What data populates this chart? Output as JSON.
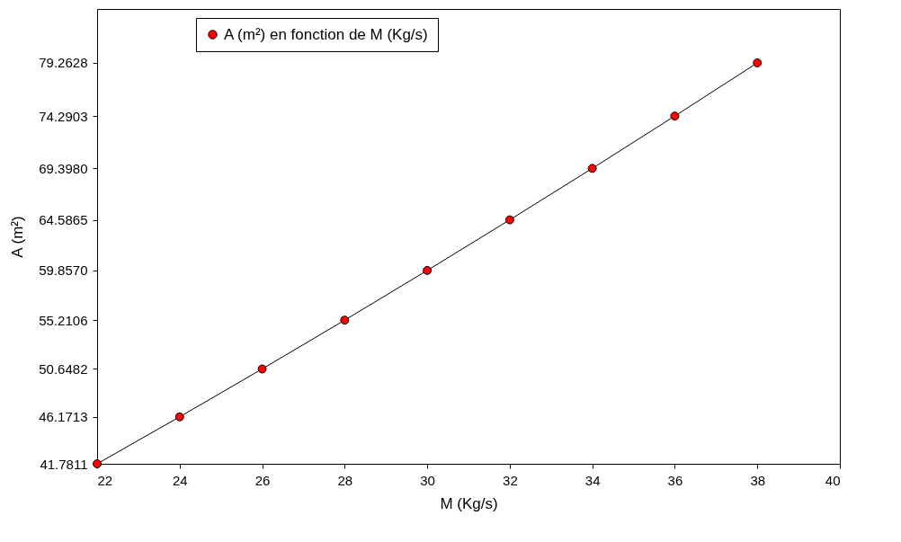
{
  "chart_data": {
    "type": "line",
    "xlabel": "M (Kg/s)",
    "ylabel": "A (m²)",
    "x": [
      22,
      24,
      26,
      28,
      30,
      32,
      34,
      36,
      38
    ],
    "series": [
      {
        "name": "A (m²) en fonction de M (Kg/s)",
        "color": "#ff0000",
        "values": [
          41.7811,
          46.1713,
          50.6482,
          55.2106,
          59.857,
          64.5865,
          69.398,
          74.2903,
          79.2628
        ]
      }
    ],
    "xlim": [
      22,
      40
    ],
    "xticks": [
      22,
      24,
      26,
      28,
      30,
      32,
      34,
      36,
      38,
      40
    ],
    "ylim": [
      41.7811,
      84.3
    ],
    "yticks": [
      {
        "value": 41.7811,
        "label": "41.7811"
      },
      {
        "value": 46.1713,
        "label": "46.1713"
      },
      {
        "value": 50.6482,
        "label": "50.6482"
      },
      {
        "value": 55.2106,
        "label": "55.2106"
      },
      {
        "value": 59.857,
        "label": "59.8570"
      },
      {
        "value": 64.5865,
        "label": "64.5865"
      },
      {
        "value": 69.398,
        "label": "69.3980"
      },
      {
        "value": 74.2903,
        "label": "74.2903"
      },
      {
        "value": 79.2628,
        "label": "79.2628"
      }
    ],
    "marker": "circle",
    "line_style": "solid",
    "legend": "top left",
    "grid": false
  }
}
